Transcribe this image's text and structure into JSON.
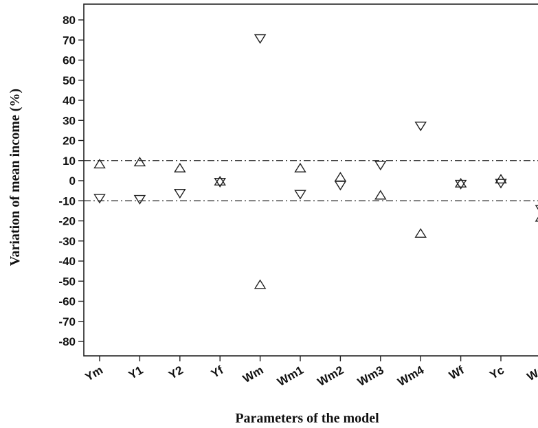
{
  "chart_data": {
    "type": "scatter",
    "title": "",
    "xlabel": "Parameters of the model",
    "ylabel": "Variation of mean income (%)",
    "categories": [
      "Ym",
      "Y1",
      "Y2",
      "Yf",
      "Wm",
      "Wm1",
      "Wm2",
      "Wm3",
      "Wm4",
      "Wf",
      "Yc",
      "Wc"
    ],
    "yticks": [
      80,
      70,
      60,
      50,
      40,
      30,
      20,
      10,
      0,
      -10,
      -20,
      -30,
      -40,
      -50,
      -60,
      -70,
      -80
    ],
    "ylim": [
      -89,
      88
    ],
    "reference_lines": [
      10,
      -10
    ],
    "series": [
      {
        "marker": "triangle-up",
        "values": [
          8,
          9,
          6,
          -0.5,
          -52,
          6,
          1.5,
          -7.5,
          -26.5,
          -1.5,
          0.5,
          -18.5
        ]
      },
      {
        "marker": "triangle-down",
        "values": [
          -8.5,
          -9,
          -6,
          -0.5,
          71,
          -6.5,
          -2,
          8,
          27.5,
          -1.5,
          -1,
          -14
        ]
      }
    ],
    "grid": false,
    "legend": "none"
  }
}
